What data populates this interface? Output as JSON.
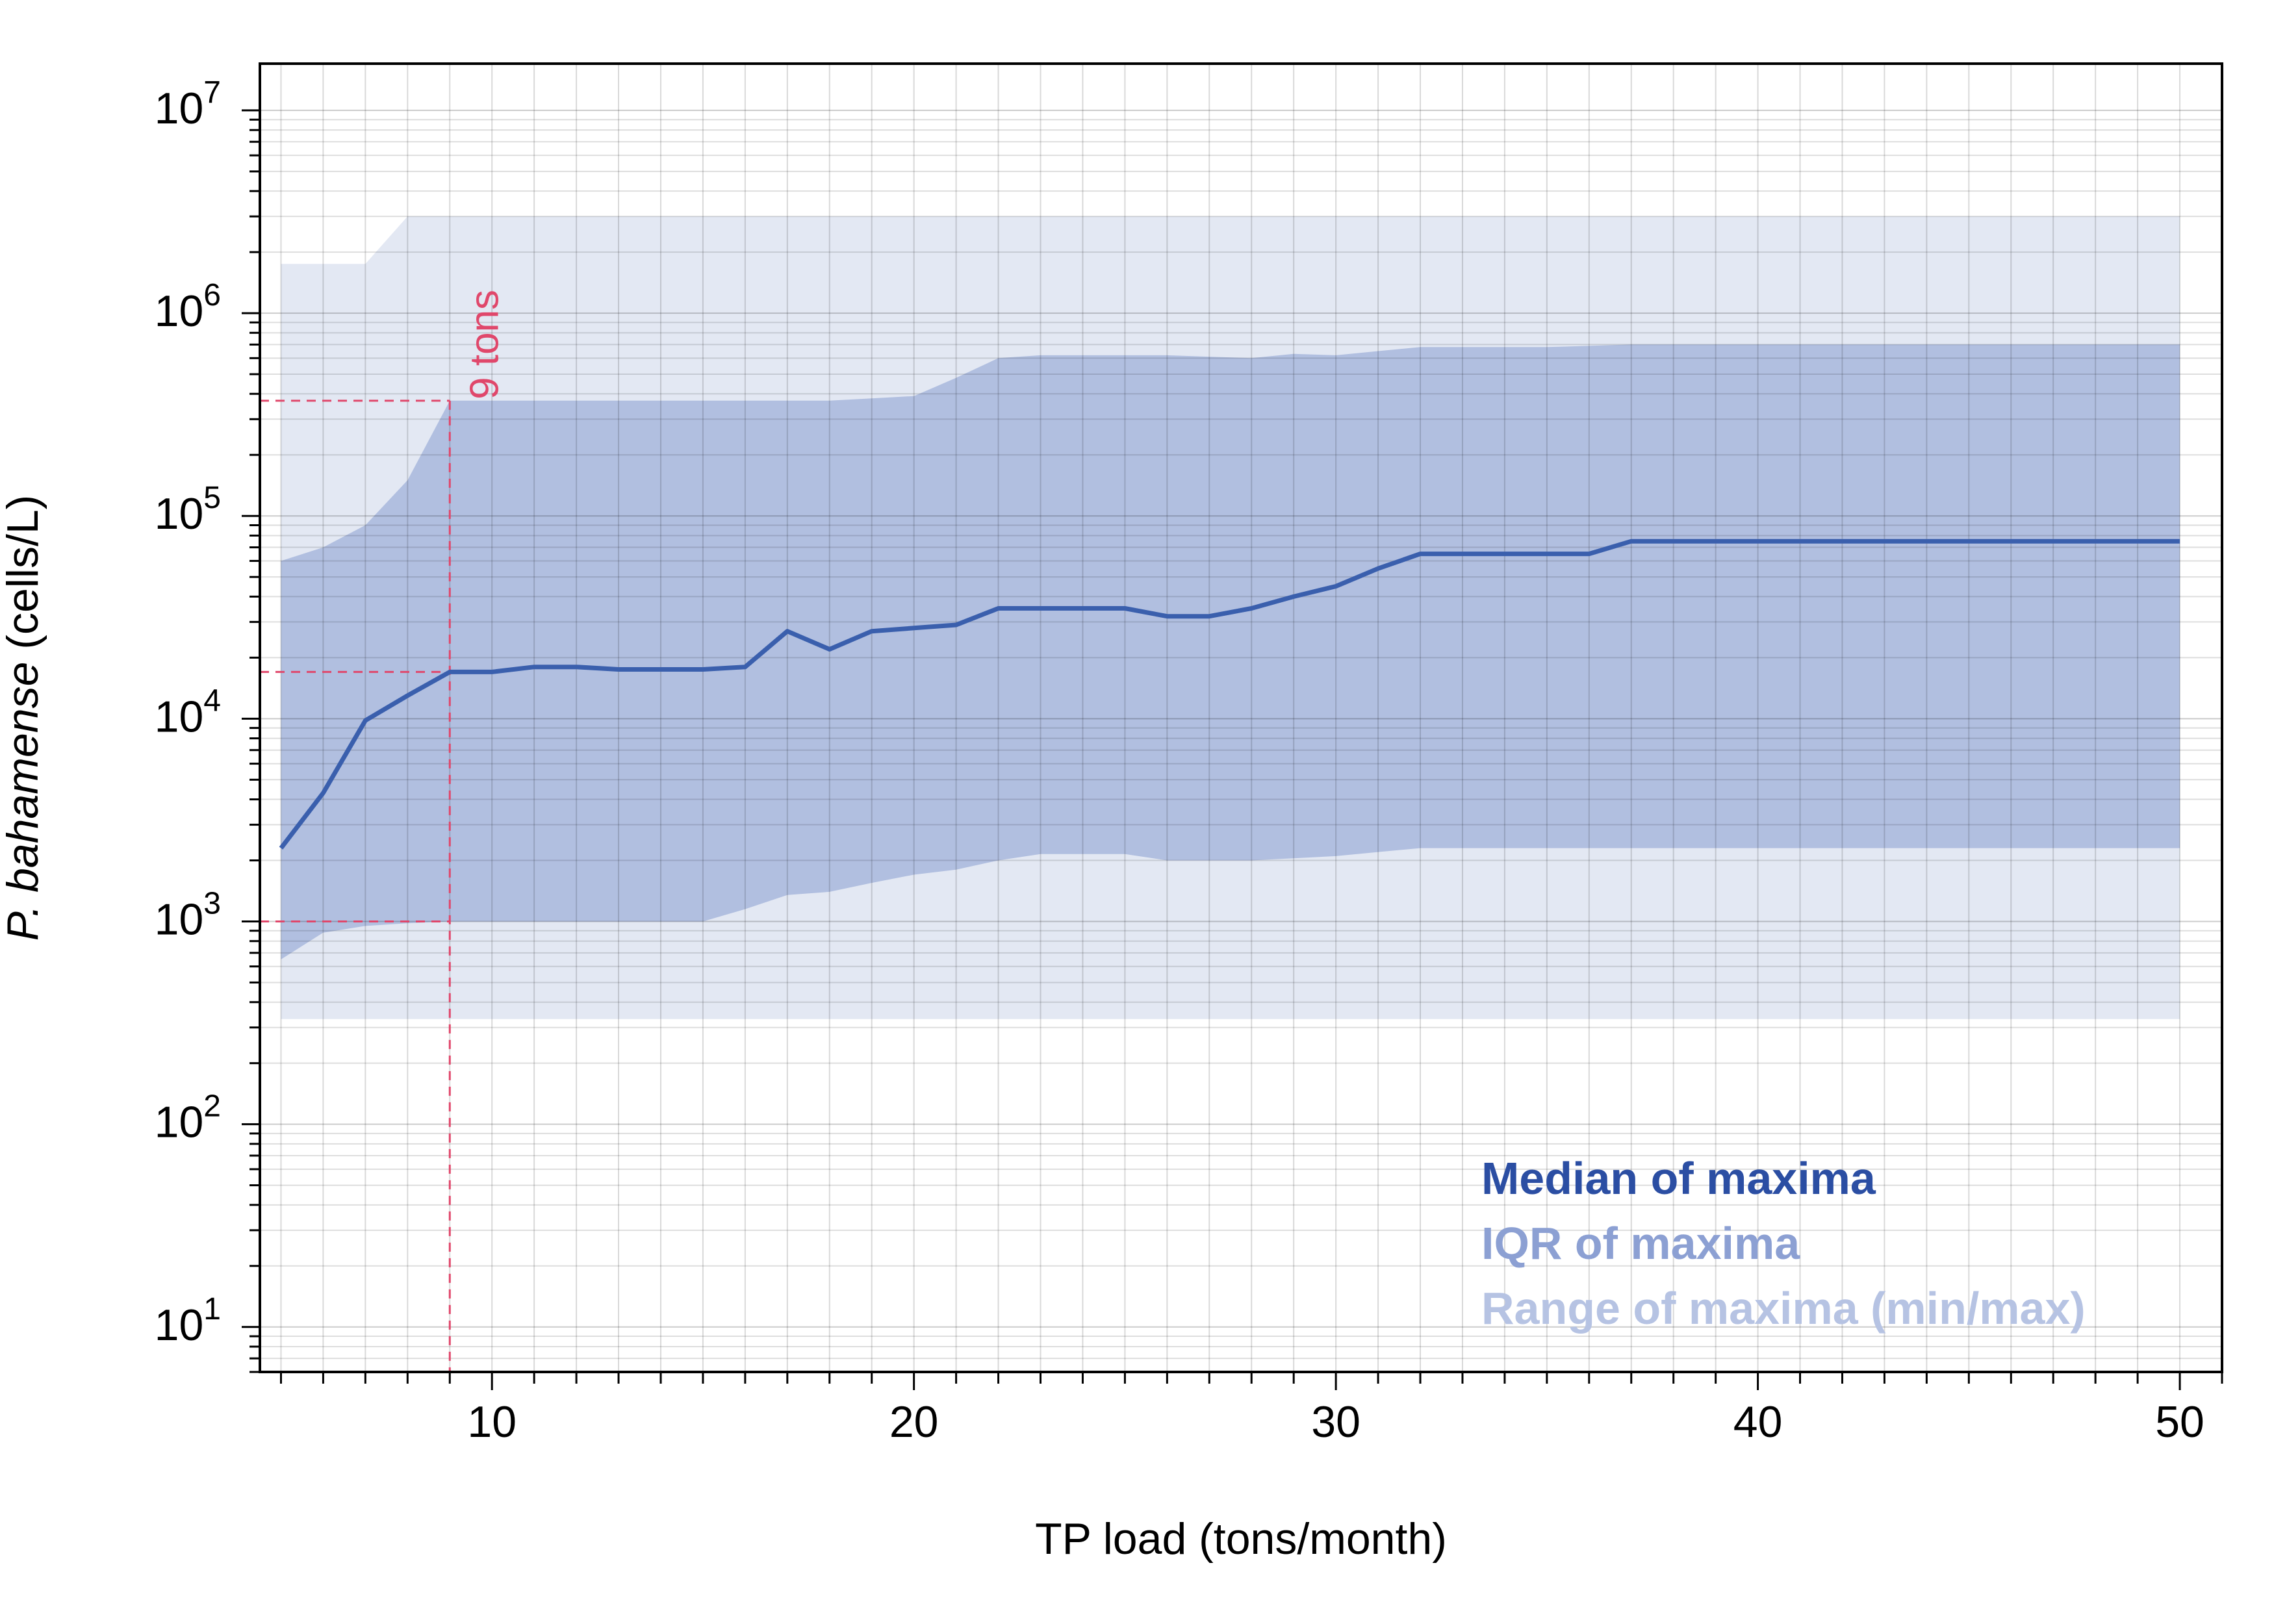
{
  "chart_data": {
    "type": "area",
    "xlabel": "TP load (tons/month)",
    "ylabel_italic": "P. bahamense",
    "ylabel_unit": " (cells/L)",
    "xlim": [
      4.5,
      51
    ],
    "ylim": [
      6,
      17000000
    ],
    "y_scale": "log",
    "grid": true,
    "legend_placement": "bottom-right",
    "x_ticks": [
      10,
      20,
      30,
      40,
      50
    ],
    "y_ticks": [
      {
        "value": 10,
        "base": "10",
        "exp": "1"
      },
      {
        "value": 100,
        "base": "10",
        "exp": "2"
      },
      {
        "value": 1000,
        "base": "10",
        "exp": "3"
      },
      {
        "value": 10000,
        "base": "10",
        "exp": "4"
      },
      {
        "value": 100000,
        "base": "10",
        "exp": "5"
      },
      {
        "value": 1000000,
        "base": "10",
        "exp": "6"
      },
      {
        "value": 10000000,
        "base": "10",
        "exp": "7"
      }
    ],
    "x": [
      5,
      6,
      7,
      8,
      9,
      10,
      11,
      12,
      13,
      14,
      15,
      16,
      17,
      18,
      19,
      20,
      21,
      22,
      23,
      24,
      25,
      26,
      27,
      28,
      29,
      30,
      31,
      32,
      33,
      34,
      35,
      36,
      37,
      38,
      39,
      40,
      41,
      42,
      43,
      44,
      45,
      46,
      47,
      48,
      49,
      50
    ],
    "series": [
      {
        "name": "Range of maxima (min/max)",
        "color": "#e3e8f3",
        "lower": [
          330,
          330,
          330,
          330,
          330,
          330,
          330,
          330,
          330,
          330,
          330,
          330,
          330,
          330,
          330,
          330,
          330,
          330,
          330,
          330,
          330,
          330,
          330,
          330,
          330,
          330,
          330,
          330,
          330,
          330,
          330,
          330,
          330,
          330,
          330,
          330,
          330,
          330,
          330,
          330,
          330,
          330,
          330,
          330,
          330,
          330
        ],
        "upper": [
          1750000,
          1750000,
          1750000,
          3000000,
          3000000,
          3000000,
          3000000,
          3000000,
          3000000,
          3000000,
          3000000,
          3000000,
          3000000,
          3000000,
          3000000,
          3000000,
          3000000,
          3000000,
          3000000,
          3000000,
          3000000,
          3000000,
          3000000,
          3000000,
          3000000,
          3000000,
          3000000,
          3000000,
          3000000,
          3000000,
          3000000,
          3000000,
          3000000,
          3000000,
          3000000,
          3000000,
          3000000,
          3000000,
          3000000,
          3000000,
          3000000,
          3000000,
          3000000,
          3000000,
          3000000,
          3000000
        ]
      },
      {
        "name": "IQR of maxima",
        "color": "#b1bfe0",
        "lower": [
          650,
          880,
          950,
          980,
          1000,
          1000,
          1000,
          1000,
          1000,
          1000,
          1000,
          1150,
          1350,
          1400,
          1550,
          1700,
          1800,
          2000,
          2150,
          2150,
          2150,
          2000,
          2000,
          2000,
          2050,
          2100,
          2200,
          2300,
          2300,
          2300,
          2300,
          2300,
          2300,
          2300,
          2300,
          2300,
          2300,
          2300,
          2300,
          2300,
          2300,
          2300,
          2300,
          2300,
          2300,
          2300
        ],
        "upper": [
          60000,
          70000,
          90000,
          150000,
          370000,
          370000,
          370000,
          370000,
          370000,
          370000,
          370000,
          370000,
          370000,
          370000,
          380000,
          390000,
          480000,
          600000,
          620000,
          620000,
          620000,
          620000,
          610000,
          600000,
          630000,
          620000,
          650000,
          680000,
          680000,
          680000,
          680000,
          690000,
          700000,
          700000,
          700000,
          700000,
          700000,
          700000,
          700000,
          700000,
          700000,
          700000,
          700000,
          700000,
          700000,
          700000
        ]
      },
      {
        "name": "Median of maxima",
        "color": "#3a5fad",
        "values": [
          2300,
          4300,
          9800,
          13000,
          17000,
          17000,
          18000,
          18000,
          17500,
          17500,
          17500,
          18000,
          27000,
          22000,
          27000,
          28000,
          29000,
          35000,
          35000,
          35000,
          35000,
          32000,
          32000,
          35000,
          40000,
          45000,
          55000,
          65000,
          65000,
          65000,
          65000,
          65000,
          75000,
          75000,
          75000,
          75000,
          75000,
          75000,
          75000,
          75000,
          75000,
          75000,
          75000,
          75000,
          75000,
          75000
        ]
      }
    ],
    "annotation": {
      "label": "9 tons",
      "color": "#e0476b",
      "x": 9,
      "y_levels": [
        370000,
        17000,
        1000
      ]
    },
    "legend": [
      {
        "label": "Median of maxima",
        "color": "#2b4ea3"
      },
      {
        "label": "IQR of maxima",
        "color": "#8ca0d3"
      },
      {
        "label": "Range of maxima (min/max)",
        "color": "#b6c3e3"
      }
    ]
  }
}
